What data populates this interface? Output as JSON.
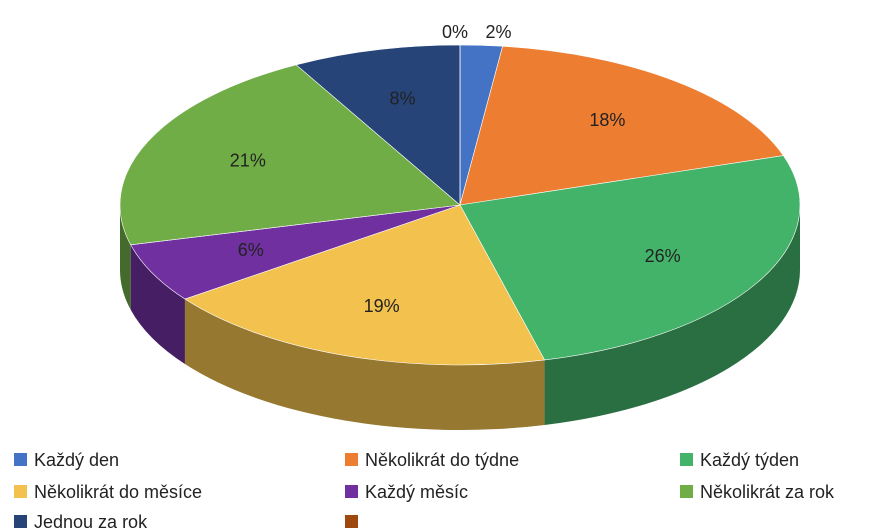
{
  "chart_data": {
    "type": "pie",
    "categories": [
      "Každý den",
      "Několikrát do týdne",
      "Každý týden",
      "Několikrát do měsíce",
      "Každý měsíc",
      "Několikrát za rok",
      "Jednou za rok",
      null
    ],
    "values": [
      2,
      18,
      26,
      19,
      6,
      21,
      8,
      0
    ],
    "value_labels": [
      "2%",
      "18%",
      "26%",
      "19%",
      "6%",
      "21%",
      "8%",
      "0%"
    ],
    "colors": [
      "#4472c4",
      "#ed7d31",
      "#44b36a",
      "#f2c14e",
      "#7030a0",
      "#70ad47",
      "#264478",
      "#9e480e"
    ]
  }
}
